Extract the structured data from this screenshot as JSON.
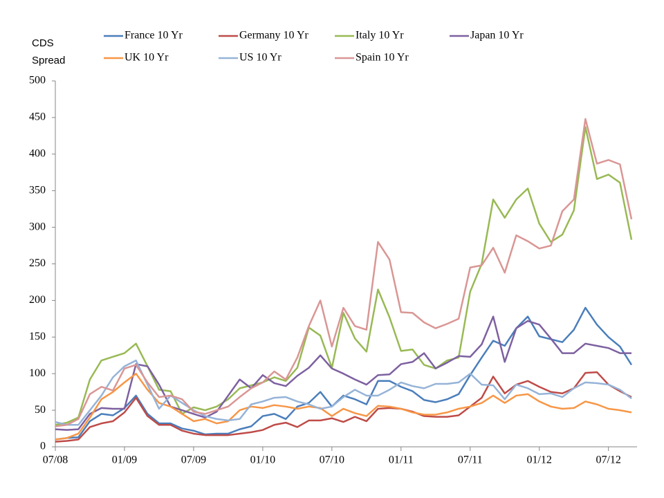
{
  "chart_data": {
    "type": "line",
    "ylabel": "CDS Spread",
    "categories": [
      "07/08",
      null,
      null,
      null,
      null,
      null,
      "01/09",
      null,
      null,
      null,
      null,
      null,
      "07/09",
      null,
      null,
      null,
      null,
      null,
      "01/10",
      null,
      null,
      null,
      null,
      null,
      "07/10",
      null,
      null,
      null,
      null,
      null,
      "01/11",
      null,
      null,
      null,
      null,
      null,
      "07/11",
      null,
      null,
      null,
      null,
      null,
      "01/12",
      null,
      null,
      null,
      null,
      null,
      "07/12",
      null,
      null
    ],
    "ylim": [
      0,
      500
    ],
    "yticks": [
      0,
      50,
      100,
      150,
      200,
      250,
      300,
      350,
      400,
      450,
      500
    ],
    "legend": "top",
    "series": [
      {
        "name": "France 10 Yr",
        "color": "#4a7ebb",
        "values": [
          10,
          12,
          13,
          35,
          45,
          43,
          53,
          70,
          45,
          32,
          32,
          25,
          22,
          17,
          18,
          18,
          24,
          28,
          42,
          45,
          38,
          55,
          60,
          75,
          55,
          70,
          65,
          58,
          90,
          90,
          82,
          76,
          64,
          61,
          65,
          72,
          98,
          122,
          145,
          138,
          162,
          178,
          151,
          147,
          143,
          160,
          190,
          167,
          150,
          137,
          112
        ]
      },
      {
        "name": "Germany 10 Yr",
        "color": "#be4b48",
        "values": [
          7,
          8,
          10,
          27,
          32,
          35,
          47,
          67,
          42,
          30,
          30,
          22,
          18,
          16,
          16,
          16,
          18,
          20,
          23,
          30,
          33,
          27,
          36,
          36,
          39,
          34,
          41,
          35,
          52,
          53,
          52,
          48,
          42,
          41,
          41,
          43,
          55,
          67,
          96,
          73,
          85,
          90,
          82,
          75,
          73,
          80,
          101,
          102,
          85,
          76,
          68
        ]
      },
      {
        "name": "Italy 10 Yr",
        "color": "#98b954",
        "values": [
          30,
          33,
          40,
          92,
          118,
          123,
          128,
          141,
          110,
          78,
          76,
          45,
          54,
          50,
          55,
          65,
          80,
          84,
          88,
          95,
          90,
          108,
          163,
          152,
          108,
          183,
          148,
          130,
          215,
          177,
          131,
          133,
          112,
          107,
          118,
          122,
          212,
          250,
          338,
          313,
          338,
          353,
          305,
          280,
          290,
          323,
          437,
          366,
          372,
          361,
          283
        ]
      },
      {
        "name": "Japan 10 Yr",
        "color": "#7d60a0",
        "values": [
          24,
          23,
          24,
          45,
          53,
          52,
          52,
          113,
          110,
          85,
          55,
          50,
          45,
          40,
          48,
          70,
          92,
          80,
          98,
          87,
          83,
          97,
          108,
          125,
          107,
          100,
          92,
          85,
          98,
          99,
          113,
          116,
          128,
          107,
          115,
          124,
          123,
          140,
          178,
          116,
          162,
          172,
          167,
          148,
          128,
          128,
          141,
          138,
          135,
          128,
          128
        ]
      },
      {
        "name": "UK 10 Yr",
        "color": "#f79646",
        "values": [
          10,
          12,
          18,
          40,
          65,
          75,
          88,
          100,
          78,
          60,
          55,
          45,
          35,
          38,
          32,
          35,
          50,
          55,
          53,
          57,
          55,
          52,
          55,
          53,
          42,
          52,
          46,
          42,
          56,
          55,
          52,
          47,
          44,
          44,
          47,
          52,
          55,
          60,
          70,
          60,
          70,
          72,
          62,
          55,
          52,
          53,
          62,
          58,
          52,
          50,
          47
        ]
      },
      {
        "name": "US 10 Yr",
        "color": "#95b3d7",
        "values": [
          34,
          30,
          30,
          50,
          70,
          95,
          110,
          118,
          85,
          52,
          70,
          60,
          50,
          42,
          38,
          36,
          38,
          58,
          62,
          67,
          68,
          62,
          58,
          52,
          55,
          68,
          78,
          70,
          70,
          78,
          88,
          83,
          80,
          86,
          86,
          88,
          100,
          85,
          84,
          65,
          85,
          80,
          72,
          73,
          68,
          80,
          88,
          87,
          85,
          78,
          66
        ]
      },
      {
        "name": "Spain 10 Yr",
        "color": "#d99694",
        "values": [
          28,
          30,
          38,
          72,
          82,
          77,
          107,
          112,
          88,
          68,
          70,
          65,
          48,
          45,
          50,
          55,
          68,
          80,
          88,
          103,
          92,
          122,
          165,
          200,
          137,
          190,
          165,
          160,
          280,
          256,
          184,
          183,
          170,
          162,
          168,
          175,
          245,
          248,
          272,
          238,
          289,
          281,
          271,
          275,
          322,
          338,
          448,
          387,
          392,
          386,
          311
        ]
      }
    ]
  }
}
